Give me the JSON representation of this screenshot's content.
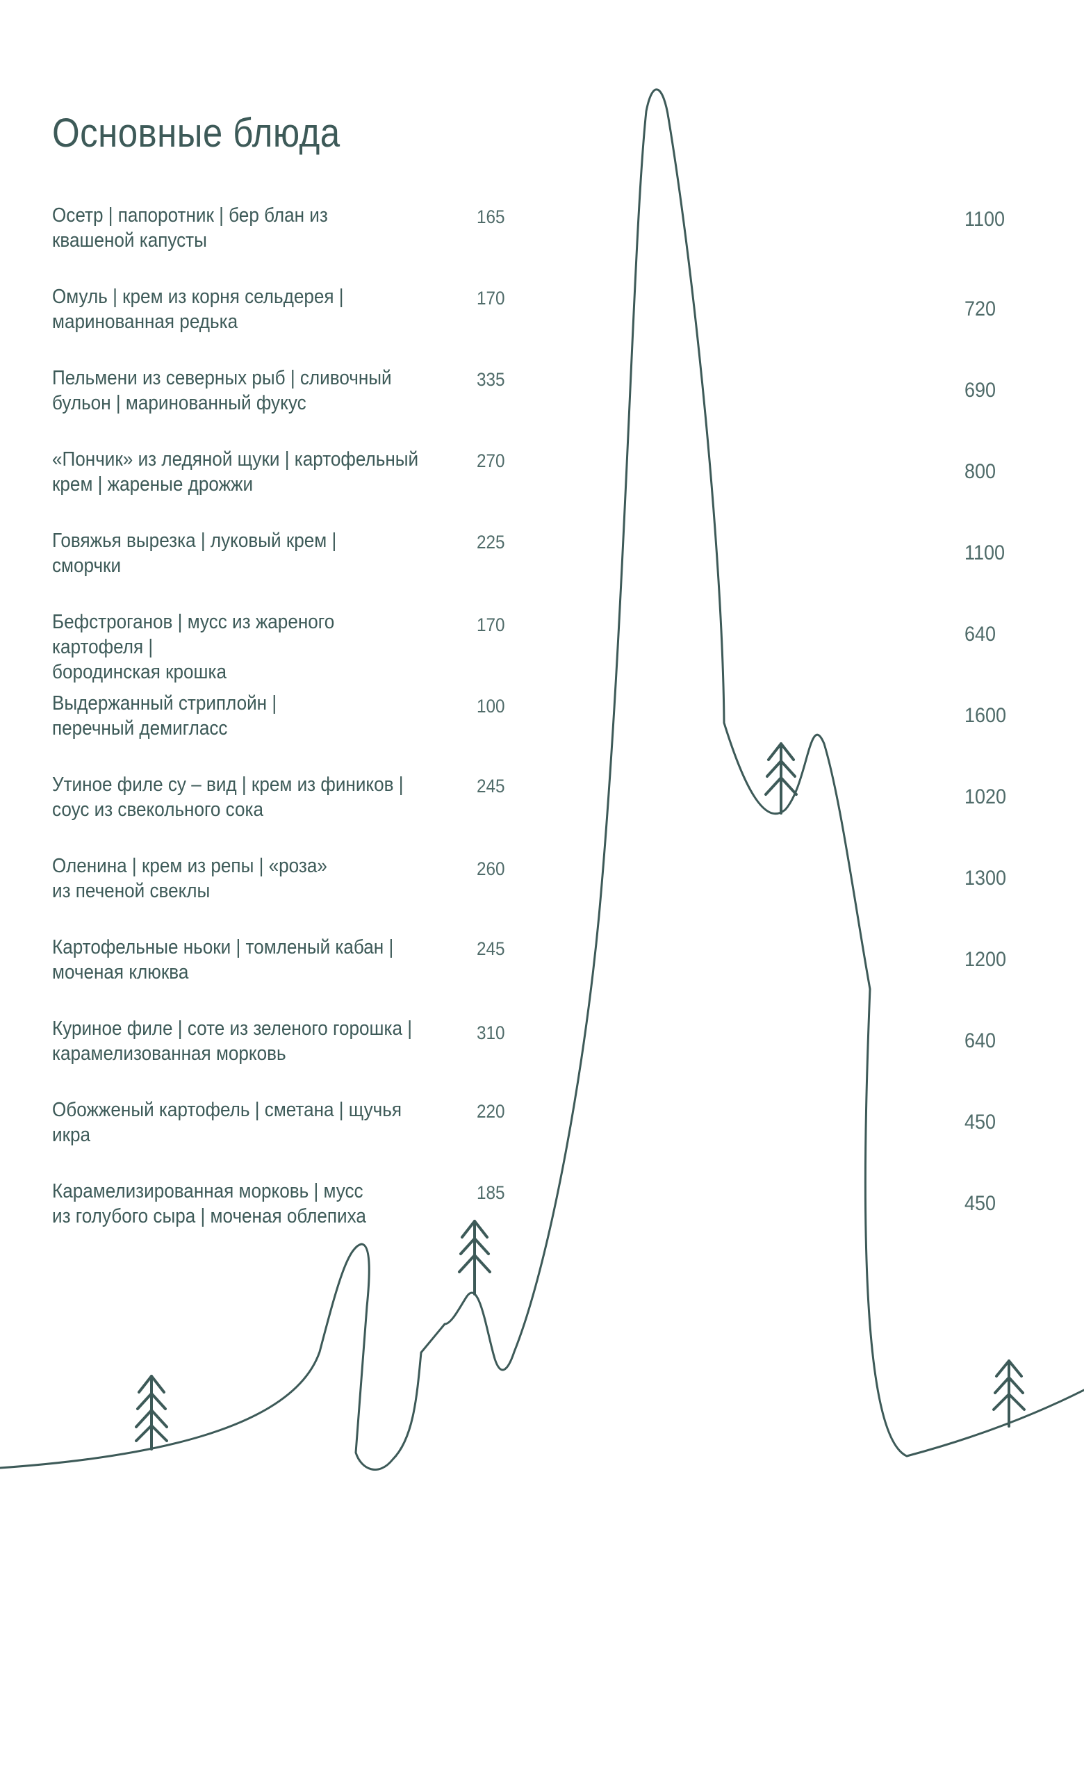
{
  "page": {
    "title": "Основные блюда"
  },
  "menu": {
    "items": [
      {
        "name": "Осетр | папоротник | бер блан из\nквашеной капусты",
        "weight": "165",
        "price": "1100"
      },
      {
        "name": "Омуль | крем из корня сельдерея |\nмаринованная редька",
        "weight": "170",
        "price": "720"
      },
      {
        "name": "Пельмени из северных рыб | сливочный\nбульон | маринованный фукус",
        "weight": "335",
        "price": "690"
      },
      {
        "name": "«Пончик» из ледяной щуки | картофельный\nкрем | жареные дрожжи",
        "weight": "270",
        "price": "800"
      },
      {
        "name": "Говяжья вырезка | луковый крем |\nсморчки",
        "weight": "225",
        "price": "1100"
      },
      {
        "name": "Бефстроганов | мусс из жареного картофеля |\nбородинская крошка",
        "weight": "170",
        "price": "640"
      },
      {
        "name": "Выдержанный стриплойн |\nперечный демигласс",
        "weight": "100",
        "price": "1600"
      },
      {
        "name": "Утиное филе су – вид | крем из фиников |\nсоус из свекольного сока",
        "weight": "245",
        "price": "1020"
      },
      {
        "name": "Оленина | крем из репы | «роза»\nиз печеной свеклы",
        "weight": "260",
        "price": "1300"
      },
      {
        "name": "Картофельные ньоки | томленый кабан |\nмоченая клюква",
        "weight": "245",
        "price": "1200"
      },
      {
        "name": "Куриное филе | соте из зеленого горошка |\nкарамелизованная морковь",
        "weight": "310",
        "price": "640"
      },
      {
        "name": "Обожженый картофель | сметана | щучья\nикра",
        "weight": "220",
        "price": "450"
      },
      {
        "name": "Карамелизированная морковь | мусс\nиз голубого сыра | моченая облепиха",
        "weight": "185",
        "price": "450"
      }
    ]
  },
  "decor": {
    "line_color": "#3d5a58",
    "icons": [
      "mountain-ridge-line",
      "fir-tree-icon"
    ]
  }
}
